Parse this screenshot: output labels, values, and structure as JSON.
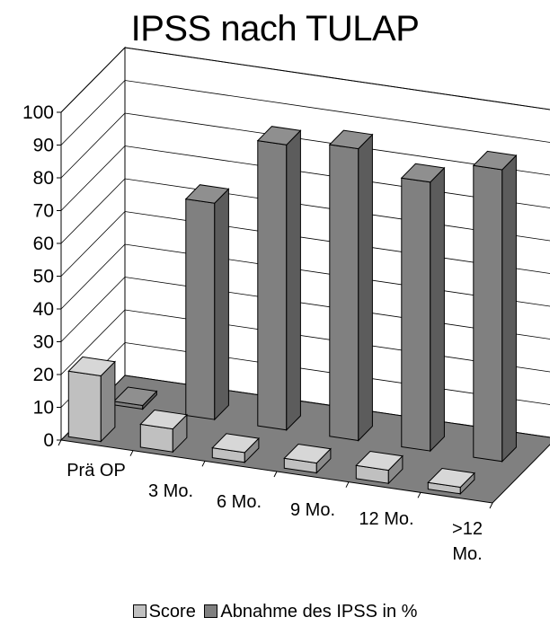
{
  "chart_data": {
    "type": "bar",
    "title": "IPSS nach TULAP",
    "categories": [
      "Prä OP",
      "3 Mo.",
      "6 Mo.",
      "9 Mo.",
      "12 Mo.",
      ">12 Mo."
    ],
    "series": [
      {
        "name": "Score",
        "values": [
          20,
          7,
          3,
          3,
          4,
          2
        ],
        "color": "#c0c0c0"
      },
      {
        "name": "Abnahme des IPSS in %",
        "values": [
          0,
          66,
          87,
          89,
          82,
          89
        ],
        "color": "#808080"
      }
    ],
    "ylim": [
      0,
      100
    ],
    "yticks": [
      0,
      10,
      20,
      30,
      40,
      50,
      60,
      70,
      80,
      90,
      100
    ],
    "grid": true,
    "three_d": true,
    "floor_color": "#808080",
    "legend_position": "bottom"
  }
}
